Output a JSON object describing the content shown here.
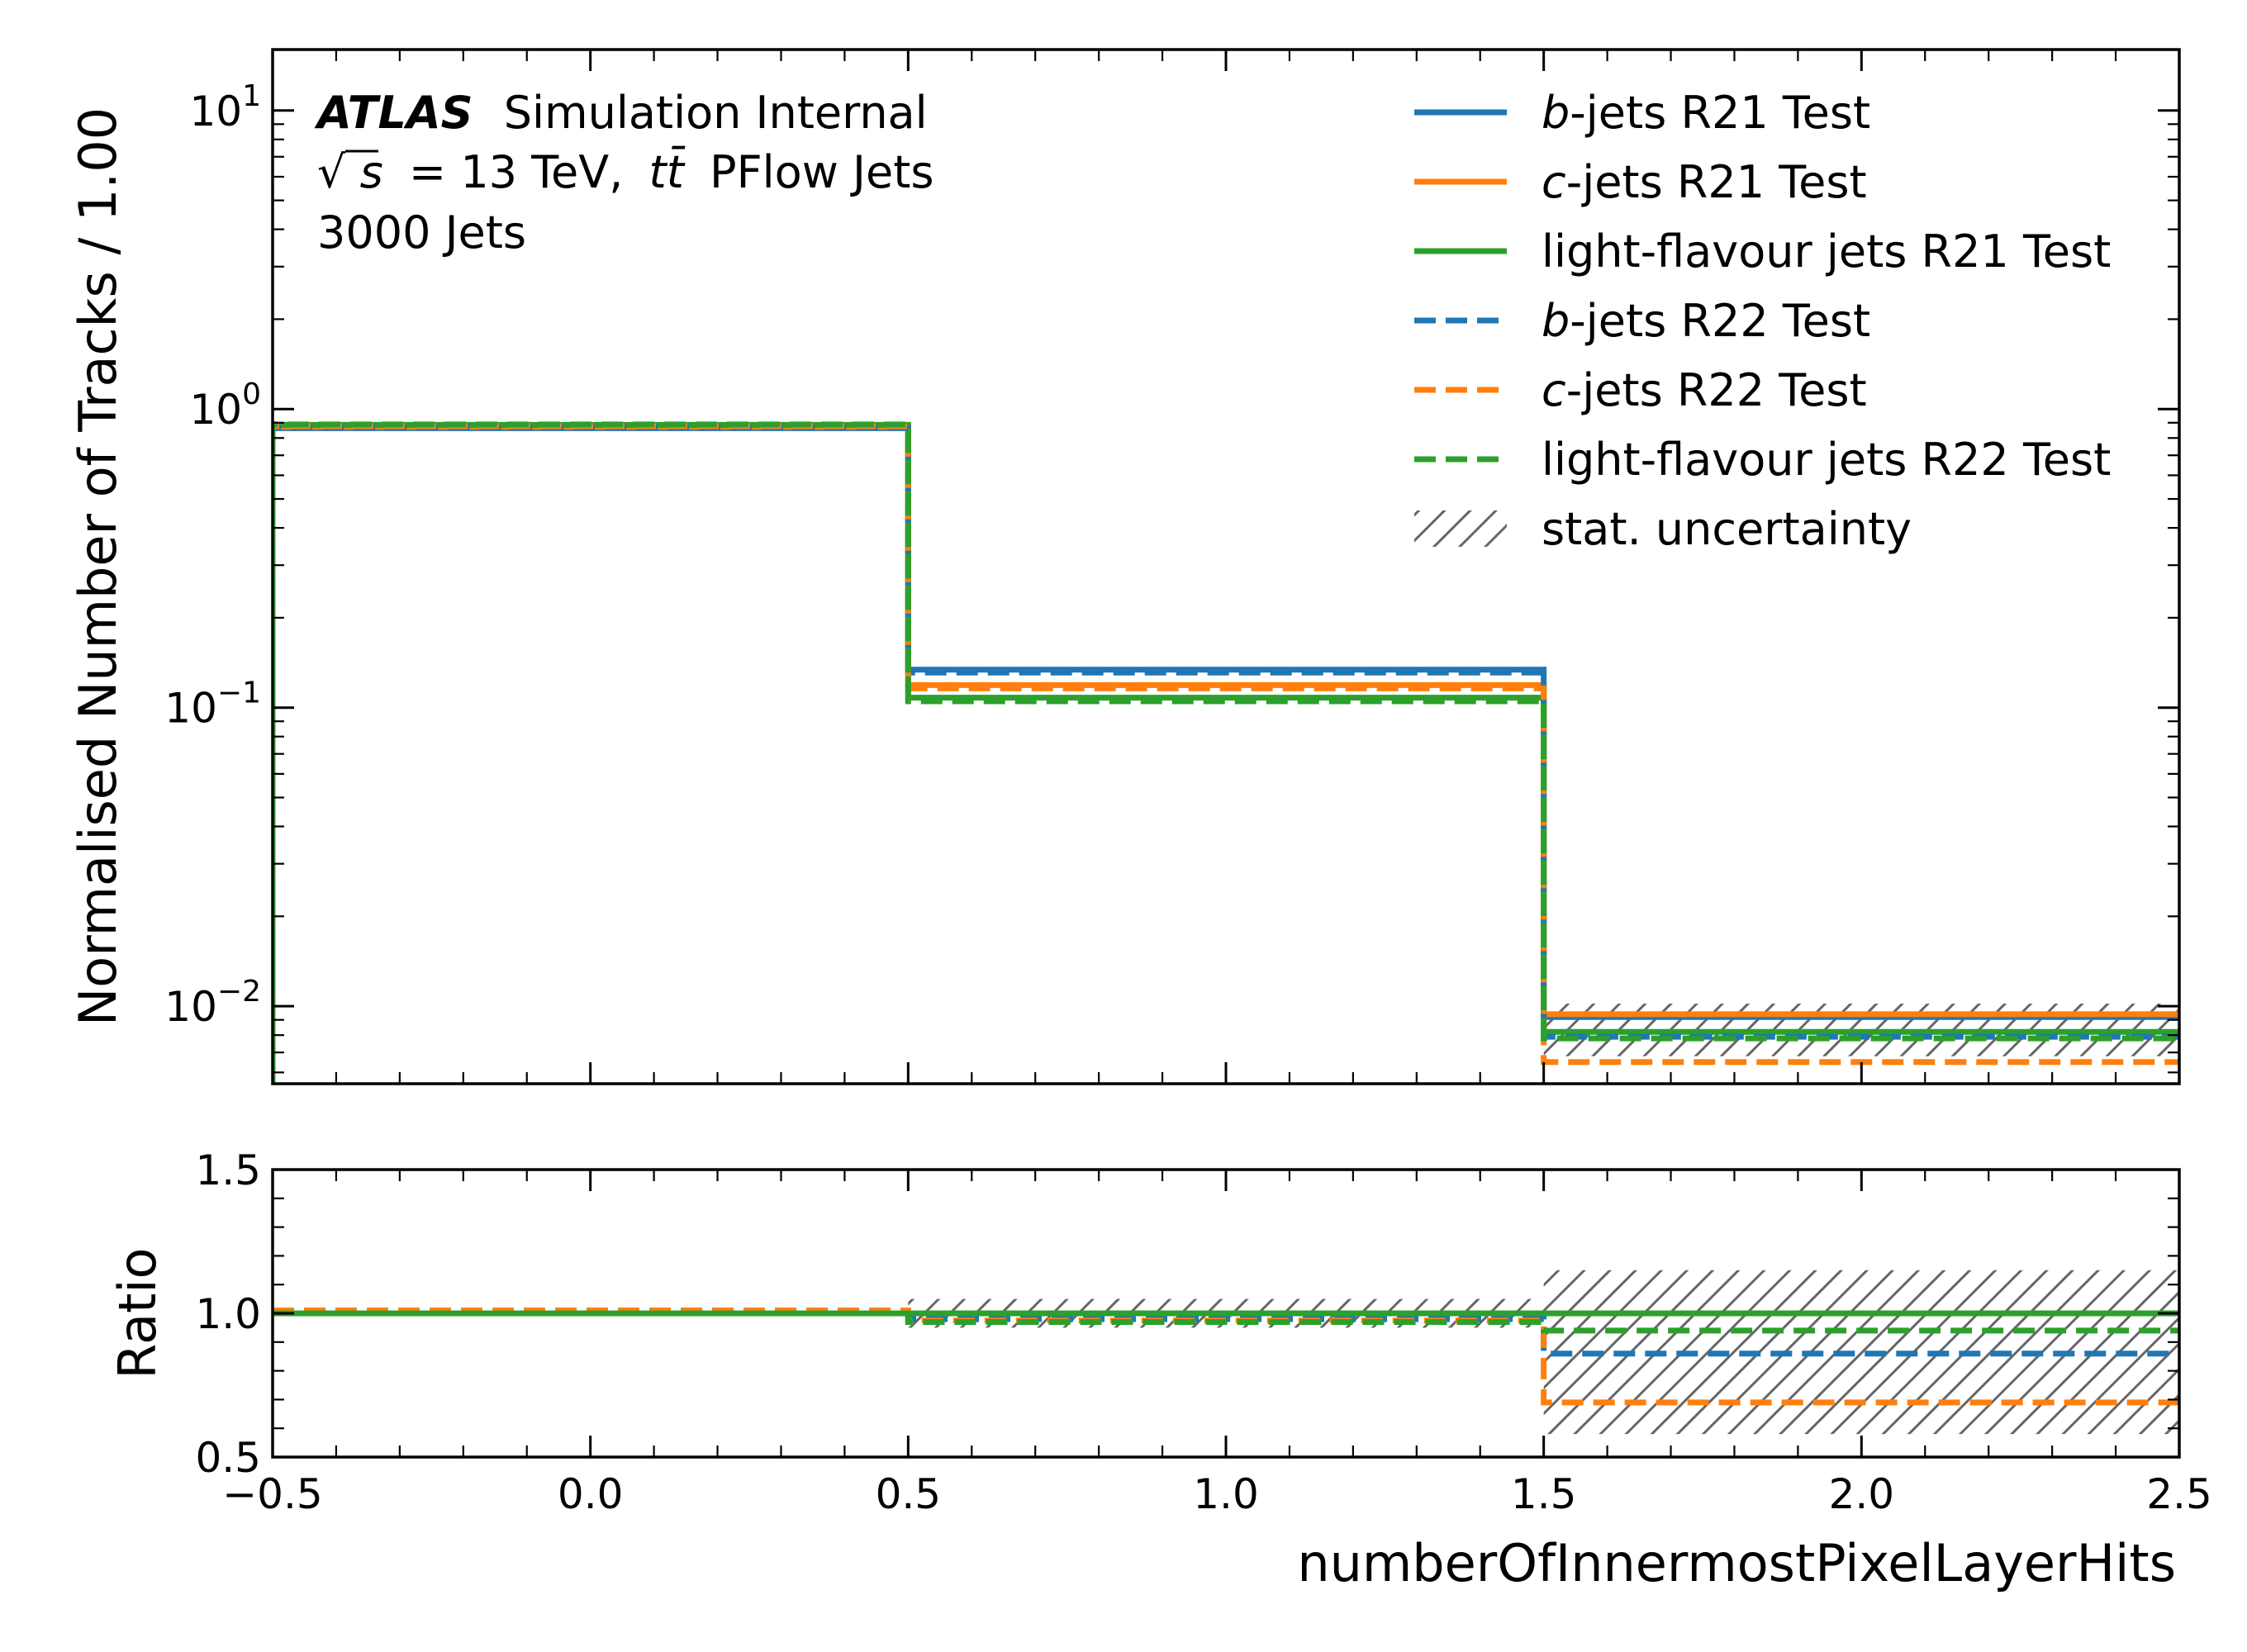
{
  "chart_data": [
    {
      "type": "line",
      "panel": "main",
      "ylabel": "Normalised Number of Tracks / 1.00",
      "yscale": "log",
      "ylim": [
        0.0055,
        16
      ],
      "xlim": [
        -0.5,
        2.5
      ],
      "y_tick_labels": [
        {
          "base": "10",
          "exp": "1",
          "value": 10
        },
        {
          "base": "10",
          "exp": "0",
          "value": 1
        },
        {
          "base": "10",
          "exp": "−1",
          "value": 0.1
        },
        {
          "base": "10",
          "exp": "−2",
          "value": 0.01
        }
      ],
      "text": {
        "atlas": "ATLAS",
        "line1_rest": "Simulation Internal",
        "sqrt": "√",
        "s": "s",
        "energy": "= 13 TeV,",
        "tt": "tt̄",
        "pflow": "PFlow Jets",
        "line3": "3000 Jets"
      },
      "bin_edges": [
        -0.5,
        0.5,
        1.5,
        2.5
      ],
      "series": [
        {
          "name_italic": "b",
          "name_rest": "-jets R21 Test",
          "color": "#1f77b4",
          "dash": "solid",
          "values": [
            0.863,
            0.134,
            0.0092
          ]
        },
        {
          "name_italic": "c",
          "name_rest": "-jets R21 Test",
          "color": "#ff7f0e",
          "dash": "solid",
          "values": [
            0.872,
            0.119,
            0.0094
          ]
        },
        {
          "name_italic": "",
          "name_rest": "light-flavour jets R21 Test",
          "color": "#2ca02c",
          "dash": "solid",
          "values": [
            0.885,
            0.108,
            0.0082
          ]
        },
        {
          "name_italic": "b",
          "name_rest": "-jets R22 Test",
          "color": "#1f77b4",
          "dash": "dashed",
          "values": [
            0.865,
            0.131,
            0.0079
          ]
        },
        {
          "name_italic": "c",
          "name_rest": "-jets R22 Test",
          "color": "#ff7f0e",
          "dash": "dashed",
          "values": [
            0.876,
            0.116,
            0.0065
          ]
        },
        {
          "name_italic": "",
          "name_rest": "light-flavour jets R22 Test",
          "color": "#2ca02c",
          "dash": "dashed",
          "values": [
            0.888,
            0.105,
            0.0078
          ]
        }
      ],
      "uncertainty_label": "stat. uncertainty",
      "uncertainty_bands": [
        {
          "x0": 1.5,
          "x1": 2.5,
          "low": 0.0068,
          "high": 0.0102
        }
      ]
    },
    {
      "type": "line",
      "panel": "ratio",
      "ylabel": "Ratio",
      "xlabel": "numberOfInnermostPixelLayerHits",
      "ylim": [
        0.5,
        1.5
      ],
      "xlim": [
        -0.5,
        2.5
      ],
      "y_ticks": [
        "0.5",
        "1.0",
        "1.5"
      ],
      "x_ticks": [
        "−0.5",
        "0.0",
        "0.5",
        "1.0",
        "1.5",
        "2.0",
        "2.5"
      ],
      "bin_edges": [
        -0.5,
        0.5,
        1.5,
        2.5
      ],
      "series": [
        {
          "color": "#1f77b4",
          "dash": "solid",
          "values": [
            1.0,
            1.0,
            1.0
          ]
        },
        {
          "color": "#ff7f0e",
          "dash": "solid",
          "values": [
            1.0,
            1.0,
            1.0
          ]
        },
        {
          "color": "#2ca02c",
          "dash": "solid",
          "values": [
            1.0,
            1.0,
            1.0
          ]
        },
        {
          "color": "#1f77b4",
          "dash": "dashed",
          "values": [
            1.0,
            0.98,
            0.86
          ]
        },
        {
          "color": "#ff7f0e",
          "dash": "dashed",
          "values": [
            1.01,
            0.975,
            0.69
          ]
        },
        {
          "color": "#2ca02c",
          "dash": "dashed",
          "values": [
            1.0,
            0.97,
            0.94
          ]
        }
      ],
      "uncertainty_bands": [
        {
          "x0": -0.5,
          "x1": 0.5,
          "low": 0.99,
          "high": 1.01
        },
        {
          "x0": 0.5,
          "x1": 1.5,
          "low": 0.95,
          "high": 1.05
        },
        {
          "x0": 1.5,
          "x1": 2.5,
          "low": 0.58,
          "high": 1.15
        }
      ]
    }
  ]
}
